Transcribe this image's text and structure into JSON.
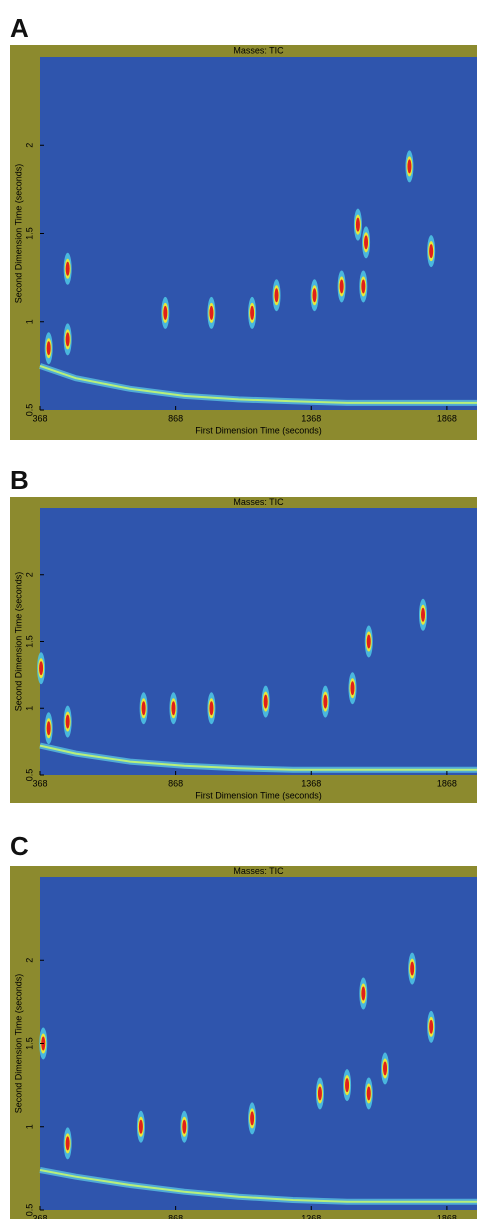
{
  "chart_data": [
    {
      "type": "heatmap",
      "panel_label": "A",
      "title": "Masses: TIC",
      "xlabel": "First Dimension Time (seconds)",
      "ylabel": "Second Dimension Time (seconds)",
      "xlim": [
        368,
        1979
      ],
      "ylim": [
        0.5,
        2.5
      ],
      "xticks": [
        368,
        868,
        1368,
        1868
      ],
      "yticks": [
        0.5,
        1,
        1.5,
        2
      ],
      "peaks": {
        "x": [
          400,
          470,
          470,
          830,
          1000,
          1150,
          1240,
          1380,
          1480,
          1540,
          1560,
          1570,
          1730,
          1810
        ],
        "y": [
          0.85,
          0.9,
          1.3,
          1.05,
          1.05,
          1.05,
          1.15,
          1.15,
          1.2,
          1.55,
          1.2,
          1.45,
          1.88,
          1.4
        ]
      },
      "bleed": {
        "x": [
          368,
          500,
          700,
          900,
          1100,
          1300,
          1500,
          1700,
          1979
        ],
        "y": [
          0.75,
          0.68,
          0.62,
          0.58,
          0.56,
          0.55,
          0.54,
          0.54,
          0.54
        ]
      }
    },
    {
      "type": "heatmap",
      "panel_label": "B",
      "title": "Masses: TIC",
      "xlabel": "First Dimension Time (seconds)",
      "ylabel": "Second Dimension Time (seconds)",
      "xlim": [
        368,
        1979
      ],
      "ylim": [
        0.5,
        2.5
      ],
      "xticks": [
        368,
        868,
        1368,
        1868
      ],
      "yticks": [
        0.5,
        1,
        1.5,
        2
      ],
      "peaks": {
        "x": [
          372,
          400,
          470,
          750,
          860,
          1000,
          1200,
          1420,
          1520,
          1580,
          1780
        ],
        "y": [
          1.3,
          0.85,
          0.9,
          1.0,
          1.0,
          1.0,
          1.05,
          1.05,
          1.15,
          1.5,
          1.7
        ]
      },
      "bleed": {
        "x": [
          368,
          500,
          700,
          900,
          1100,
          1300,
          1500,
          1700,
          1979
        ],
        "y": [
          0.72,
          0.66,
          0.6,
          0.57,
          0.55,
          0.54,
          0.54,
          0.54,
          0.54
        ]
      }
    },
    {
      "type": "heatmap",
      "panel_label": "C",
      "title": "Masses: TIC",
      "xlabel": "First Dimension Time (seconds)",
      "ylabel": "Second Dimension Time (seconds)",
      "xlim": [
        368,
        1979
      ],
      "ylim": [
        0.5,
        2.5
      ],
      "xticks": [
        368,
        868,
        1368,
        1868
      ],
      "yticks": [
        0.5,
        1,
        1.5,
        2
      ],
      "peaks": {
        "x": [
          380,
          470,
          740,
          900,
          1150,
          1400,
          1500,
          1560,
          1580,
          1640,
          1740,
          1810
        ],
        "y": [
          1.5,
          0.9,
          1.0,
          1.0,
          1.05,
          1.2,
          1.25,
          1.8,
          1.2,
          1.35,
          1.95,
          1.6
        ]
      },
      "bleed": {
        "x": [
          368,
          500,
          700,
          900,
          1100,
          1300,
          1500,
          1700,
          1979
        ],
        "y": [
          0.74,
          0.7,
          0.65,
          0.61,
          0.58,
          0.56,
          0.55,
          0.55,
          0.55
        ]
      }
    }
  ]
}
